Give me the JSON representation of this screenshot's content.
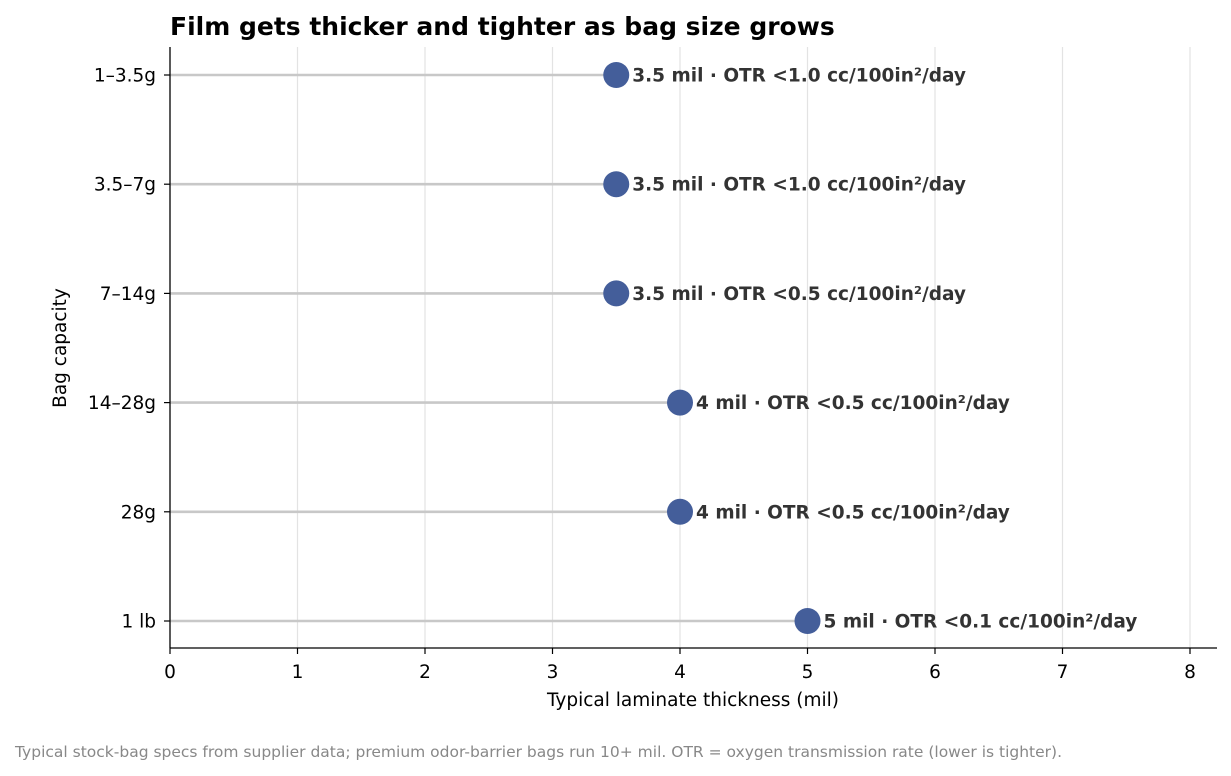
{
  "chart_data": {
    "type": "lollipop",
    "title": "Film gets thicker and tighter as bag size grows",
    "xlabel": "Typical laminate thickness (mil)",
    "ylabel": "Bag capacity",
    "xlim": [
      0,
      8.2
    ],
    "xticks": [
      0,
      1,
      2,
      3,
      4,
      5,
      6,
      7,
      8
    ],
    "grid": "vertical",
    "categories": [
      "1–3.5g",
      "3.5–7g",
      "7–14g",
      "14–28g",
      "28g",
      "1 lb"
    ],
    "values": [
      3.5,
      3.5,
      3.5,
      4,
      4,
      5
    ],
    "labels": [
      "3.5 mil  ·  OTR <1.0 cc/100in²/day",
      "3.5 mil  ·  OTR <1.0 cc/100in²/day",
      "3.5 mil  ·  OTR <0.5 cc/100in²/day",
      "4 mil  ·  OTR <0.5 cc/100in²/day",
      "4 mil  ·  OTR <0.5 cc/100in²/day",
      "5 mil  ·  OTR <0.1 cc/100in²/day"
    ],
    "footnote": "Typical stock-bag specs from supplier data; premium odor-barrier bags run 10+ mil. OTR = oxygen transmission rate (lower is tighter).",
    "colors": {
      "dot": "#445e9a",
      "stem": "#c8c8c8",
      "grid": "#e3e3e3",
      "axis": "#000000",
      "label": "#333333",
      "footnote": "#888888"
    }
  }
}
